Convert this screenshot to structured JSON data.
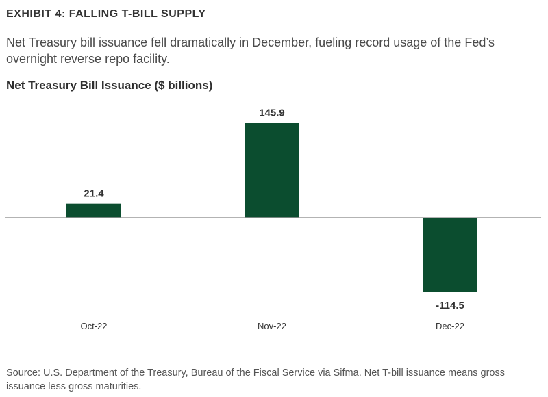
{
  "exhibit_title": "EXHIBIT 4: FALLING T-BILL SUPPLY",
  "subtitle": "Net Treasury bill issuance fell dramatically in December, fueling record usage of the Fed’s overnight reverse repo facility.",
  "source": "Source: U.S. Department of the Treasury, Bureau of the Fiscal Service via Sifma. Net T-bill issuance means gross issuance less gross maturities.",
  "colors": {
    "bar": "#0b4d2f",
    "axis": "#9a9a9a"
  },
  "chart_data": {
    "type": "bar",
    "title": "Net Treasury Bill Issuance ($ billions)",
    "categories": [
      "Oct-22",
      "Nov-22",
      "Dec-22"
    ],
    "values": [
      21.4,
      145.9,
      -114.5
    ],
    "value_labels": [
      "21.4",
      "145.9",
      "-114.5"
    ],
    "ylim": [
      -125,
      160
    ],
    "grid": false,
    "legend": "none"
  }
}
